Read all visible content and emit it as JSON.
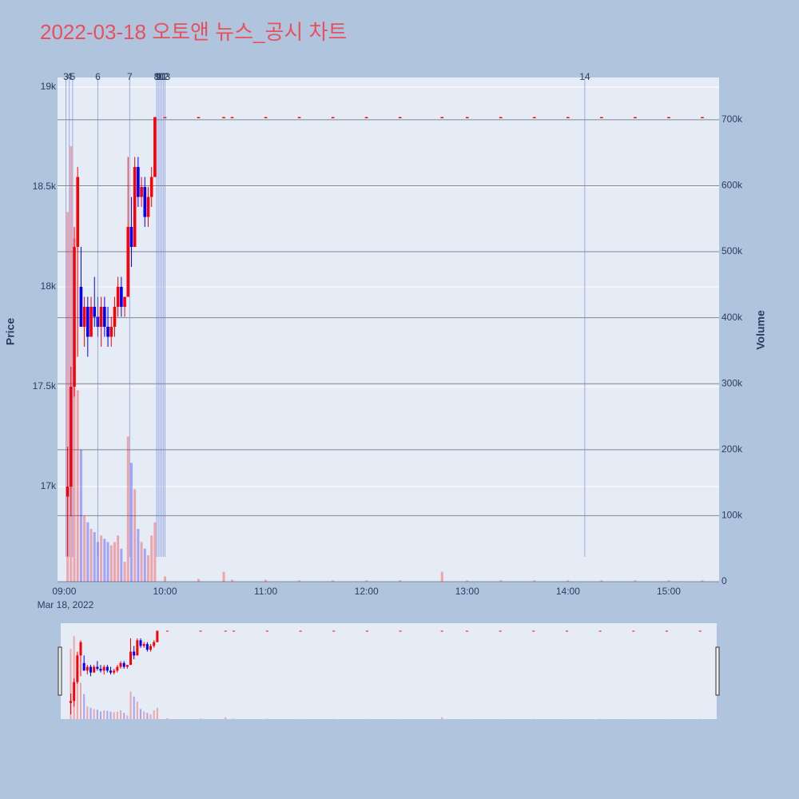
{
  "chart_data": {
    "type": "candlestick",
    "title": "2022-03-18 오토앤 뉴스_공시 차트",
    "y_label": "Price",
    "y2_label": "Volume",
    "x_date_label": "Mar 18, 2022",
    "increasing_color": "#ff0000",
    "decreasing_color": "#0000ff",
    "xlim": [
      "08:56",
      "15:30"
    ],
    "xticks": [
      "09:00",
      "10:00",
      "11:00",
      "12:00",
      "13:00",
      "14:00",
      "15:00"
    ],
    "ylim": [
      16524,
      19048
    ],
    "yticks": [
      {
        "value": 17000,
        "label": "17k"
      },
      {
        "value": 17500,
        "label": "17.5k"
      },
      {
        "value": 18000,
        "label": "18k"
      },
      {
        "value": 18500,
        "label": "18.5k"
      },
      {
        "value": 19000,
        "label": "19k"
      }
    ],
    "y2lim": [
      0,
      764000
    ],
    "y2ticks": [
      0,
      {
        "value": 100000,
        "label": "100k"
      },
      {
        "value": 200000,
        "label": "200k"
      },
      {
        "value": 300000,
        "label": "300k"
      },
      {
        "value": 400000,
        "label": "400k"
      },
      {
        "value": 500000,
        "label": "500k"
      },
      {
        "value": 600000,
        "label": "600k"
      },
      {
        "value": 700000,
        "label": "700k"
      }
    ],
    "x": [
      "09:02",
      "09:04",
      "09:06",
      "09:08",
      "09:10",
      "09:12",
      "09:14",
      "09:16",
      "09:18",
      "09:20",
      "09:22",
      "09:24",
      "09:26",
      "09:28",
      "09:30",
      "09:32",
      "09:34",
      "09:36",
      "09:38",
      "09:40",
      "09:42",
      "09:44",
      "09:46",
      "09:48",
      "09:50",
      "09:52",
      "09:54",
      "10:00",
      "10:20",
      "10:35",
      "10:40",
      "11:00",
      "11:20",
      "11:40",
      "12:00",
      "12:20",
      "12:45",
      "13:00",
      "13:20",
      "13:40",
      "14:00",
      "14:20",
      "14:40",
      "15:00",
      "15:20"
    ],
    "open": [
      16950,
      17000,
      17500,
      18200,
      18000,
      17800,
      17900,
      17750,
      17900,
      17850,
      17800,
      17900,
      17800,
      17750,
      17800,
      17900,
      18000,
      17900,
      17950,
      18300,
      18200,
      18600,
      18450,
      18500,
      18350,
      18450,
      18550,
      18850,
      18850,
      18850,
      18850,
      18850,
      18850,
      18850,
      18850,
      18850,
      18850,
      18850,
      18850,
      18850,
      18850,
      18850,
      18850,
      18850,
      18850
    ],
    "high": [
      17200,
      17600,
      18300,
      18600,
      18200,
      17950,
      17950,
      17950,
      18050,
      17950,
      17950,
      17950,
      17900,
      17850,
      17950,
      18050,
      18050,
      17950,
      18650,
      18450,
      18650,
      18650,
      18550,
      18550,
      18500,
      18600,
      18850,
      18850,
      18850,
      18850,
      18850,
      18850,
      18850,
      18850,
      18850,
      18850,
      18850,
      18850,
      18850,
      18850,
      18850,
      18850,
      18850,
      18850,
      18850
    ],
    "low": [
      16650,
      16850,
      17450,
      17650,
      17800,
      17700,
      17650,
      17750,
      17800,
      17750,
      17700,
      17750,
      17700,
      17700,
      17750,
      17850,
      17850,
      17850,
      17950,
      18100,
      18200,
      18400,
      18400,
      18300,
      18300,
      18400,
      18550,
      18850,
      18850,
      18850,
      18850,
      18850,
      18850,
      18850,
      18850,
      18850,
      18850,
      18850,
      18850,
      18850,
      18850,
      18850,
      18850,
      18850,
      18850
    ],
    "close": [
      17000,
      17500,
      18200,
      18550,
      17800,
      17900,
      17750,
      17900,
      17850,
      17800,
      17900,
      17800,
      17750,
      17800,
      17900,
      18000,
      17900,
      17950,
      18300,
      18200,
      18600,
      18450,
      18500,
      18350,
      18450,
      18550,
      18850,
      18850,
      18850,
      18850,
      18850,
      18850,
      18850,
      18850,
      18850,
      18850,
      18850,
      18850,
      18850,
      18850,
      18850,
      18850,
      18850,
      18850,
      18850
    ],
    "volume": [
      560000,
      660000,
      520000,
      290000,
      200000,
      100000,
      90000,
      80000,
      75000,
      60000,
      70000,
      65000,
      60000,
      55000,
      60000,
      70000,
      50000,
      30000,
      220000,
      180000,
      140000,
      80000,
      60000,
      50000,
      40000,
      70000,
      90000,
      8000,
      4000,
      15000,
      3000,
      3000,
      2000,
      2000,
      2000,
      2000,
      15000,
      2000,
      2000,
      2000,
      2000,
      2000,
      2000,
      2000,
      2000
    ],
    "annotations": [
      {
        "x": "09:01",
        "text": "3"
      },
      {
        "x": "09:03",
        "text": "4"
      },
      {
        "x": "09:05",
        "text": "5"
      },
      {
        "x": "09:20",
        "text": "6"
      },
      {
        "x": "09:39",
        "text": "7"
      },
      {
        "x": "09:55",
        "text": "8"
      },
      {
        "x": "09:56",
        "text": "9"
      },
      {
        "x": "09:57",
        "text": "10"
      },
      {
        "x": "09:58",
        "text": "11"
      },
      {
        "x": "09:59",
        "text": "12"
      },
      {
        "x": "10:00",
        "text": "13"
      },
      {
        "x": "14:10",
        "text": "14"
      }
    ]
  }
}
